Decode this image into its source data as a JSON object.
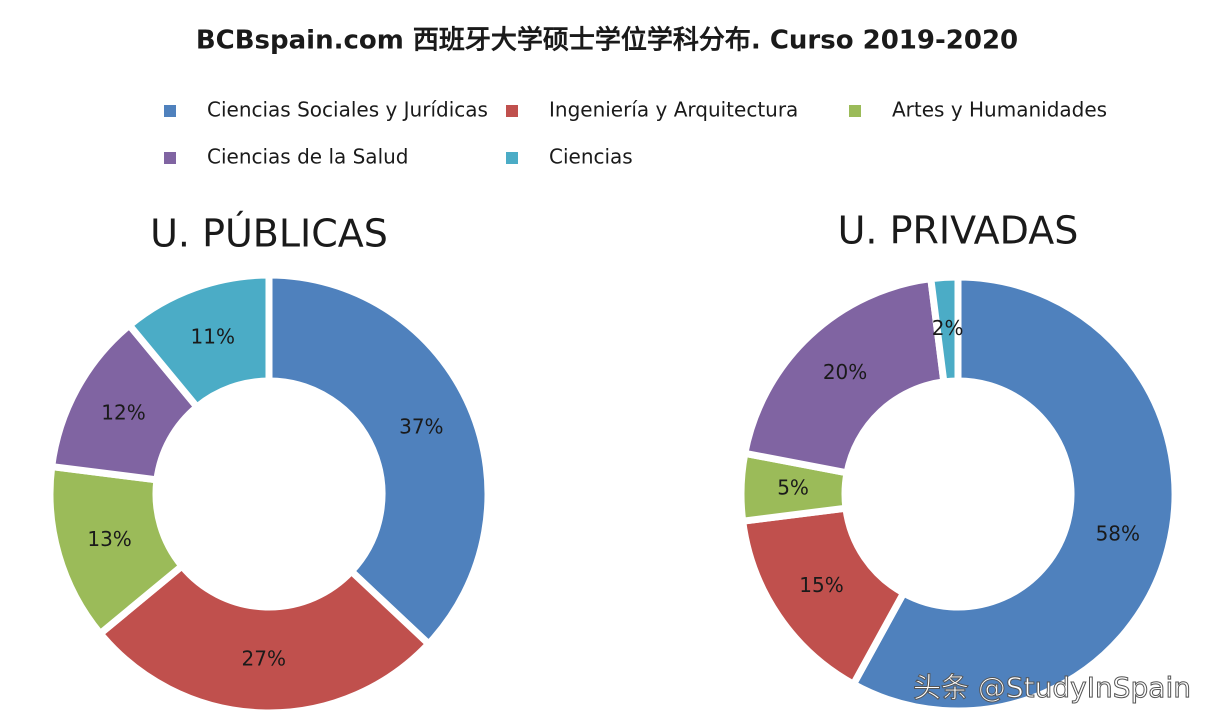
{
  "title": "BCBspain.com 西班牙大学硕士学位学科分布. Curso 2019-2020",
  "watermark": "头条 @StudyInSpain",
  "chart_data": [
    {
      "type": "donut",
      "title": "U. PÚBLICAS",
      "categories": [
        "Ciencias Sociales y Jurídicas",
        "Ingeniería y Arquitectura",
        "Artes y Humanidades",
        "Ciencias de la Salud",
        "Ciencias"
      ],
      "values": [
        37,
        27,
        13,
        12,
        11
      ],
      "value_labels": [
        "37%",
        "27%",
        "13%",
        "12%",
        "11%"
      ],
      "colors": [
        "#4f81bd",
        "#c0504d",
        "#9bbb59",
        "#8064a2",
        "#4bacc6"
      ]
    },
    {
      "type": "donut",
      "title": "U. PRIVADAS",
      "categories": [
        "Ciencias Sociales y Jurídicas",
        "Ingeniería y Arquitectura",
        "Artes y Humanidades",
        "Ciencias de la Salud",
        "Ciencias"
      ],
      "values": [
        58,
        15,
        5,
        20,
        2
      ],
      "value_labels": [
        "58%",
        "15%",
        "5%",
        "20%",
        "2%"
      ],
      "colors": [
        "#4f81bd",
        "#c0504d",
        "#9bbb59",
        "#8064a2",
        "#4bacc6"
      ]
    }
  ]
}
